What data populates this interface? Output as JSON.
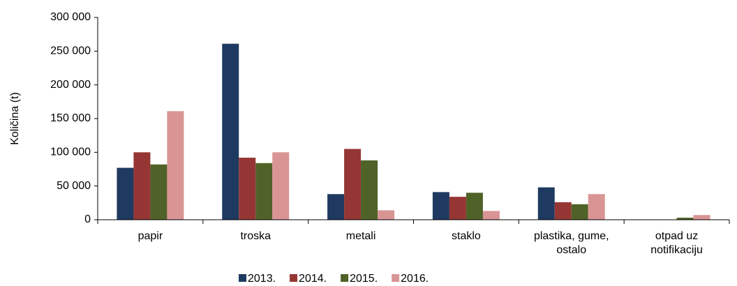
{
  "chart_data": {
    "type": "bar",
    "y_label": "Količina (t)",
    "categories": [
      "papir",
      "troska",
      "metali",
      "staklo",
      "plastika, gume, ostalo",
      "otpad uz notifikaciju"
    ],
    "series": [
      {
        "name": "2013.",
        "color": "#1f3a60",
        "values": [
          77000,
          261000,
          38000,
          41000,
          48000,
          0
        ]
      },
      {
        "name": "2014.",
        "color": "#963634",
        "values": [
          100000,
          92000,
          105000,
          34000,
          26000,
          0
        ]
      },
      {
        "name": "2015.",
        "color": "#4f6228",
        "values": [
          82000,
          84000,
          88000,
          40000,
          23000,
          3000
        ]
      },
      {
        "name": "2016.",
        "color": "#d99594",
        "values": [
          161000,
          100000,
          14000,
          13000,
          38000,
          7000
        ]
      }
    ],
    "ylim": [
      0,
      300000
    ],
    "yticks": [
      0,
      {
        "value": 50000,
        "label": "50 000"
      },
      {
        "value": 100000,
        "label": "100 000"
      },
      {
        "value": 150000,
        "label": "150 000"
      },
      {
        "value": 200000,
        "label": "200 000"
      },
      {
        "value": 250000,
        "label": "250 000"
      },
      {
        "value": 300000,
        "label": "300 000"
      }
    ],
    "legend": "bottom"
  }
}
